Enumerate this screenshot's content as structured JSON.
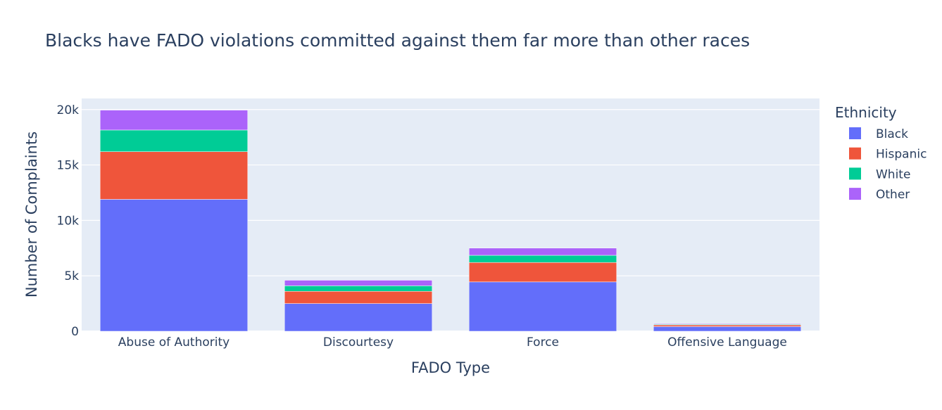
{
  "chart_data": {
    "type": "bar",
    "barmode": "stack",
    "title": "Blacks have FADO violations committed against them far more than other races",
    "xlabel": "FADO Type",
    "ylabel": "Number of Complaints",
    "categories": [
      "Abuse of Authority",
      "Discourtesy",
      "Force",
      "Offensive Language"
    ],
    "y_ticks": [
      {
        "value": 0,
        "label": "0"
      },
      {
        "value": 5000,
        "label": "5k"
      },
      {
        "value": 10000,
        "label": "10k"
      },
      {
        "value": 15000,
        "label": "15k"
      },
      {
        "value": 20000,
        "label": "20k"
      }
    ],
    "ylim": [
      0,
      21000
    ],
    "grid": true,
    "legend": {
      "title": "Ethnicity",
      "placement": "right"
    },
    "series": [
      {
        "name": "Black",
        "color": "#636efa",
        "values": [
          11900,
          2500,
          4450,
          420
        ]
      },
      {
        "name": "Hispanic",
        "color": "#ef553b",
        "values": [
          4300,
          1100,
          1750,
          150
        ]
      },
      {
        "name": "White",
        "color": "#00cc96",
        "values": [
          1950,
          500,
          650,
          60
        ]
      },
      {
        "name": "Other",
        "color": "#ab63fa",
        "values": [
          1800,
          500,
          650,
          60
        ]
      }
    ]
  }
}
